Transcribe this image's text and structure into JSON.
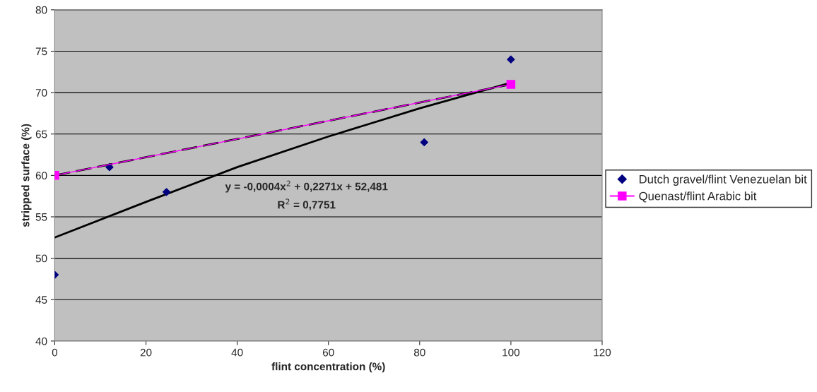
{
  "chart_data": {
    "type": "scatter",
    "xlabel": "flint concentration (%)",
    "ylabel": "stripped surface (%)",
    "xlim": [
      0,
      120
    ],
    "xticks": [
      0,
      20,
      40,
      60,
      80,
      100,
      120
    ],
    "ylim": [
      40,
      80
    ],
    "yticks": [
      40,
      45,
      50,
      55,
      60,
      65,
      70,
      75,
      80
    ],
    "grid": "y",
    "legend": "right",
    "annotations": [
      "y = -0,0004x$^{2}$ + 0,2271x + 52,481",
      "R$^{2}$ = 0,7751"
    ],
    "series": [
      {
        "name": "Dutch gravel/flint Venezuelan bit",
        "color": "#000080",
        "marker": "diamond",
        "x": [
          0,
          12,
          24.5,
          81,
          100
        ],
        "values": [
          48,
          61,
          58,
          64,
          74
        ]
      },
      {
        "name": "Quenast/flint Arabic bit",
        "type": "line",
        "color": "#ff00ff",
        "marker": "square",
        "line_style": "solid",
        "x": [
          0,
          100
        ],
        "values": [
          60,
          71
        ]
      },
      {
        "type": "line",
        "color": "#000000",
        "marker": "none",
        "line_style": "dashed",
        "x": [
          0,
          100
        ],
        "values": [
          60,
          71
        ]
      },
      {
        "type": "line",
        "color": "#000000",
        "marker": "none",
        "line_style": "solid",
        "x": [
          0,
          20,
          40,
          60,
          80,
          100
        ],
        "values": [
          52.5,
          56.8,
          61.0,
          64.7,
          68.1,
          71.2
        ]
      }
    ]
  }
}
